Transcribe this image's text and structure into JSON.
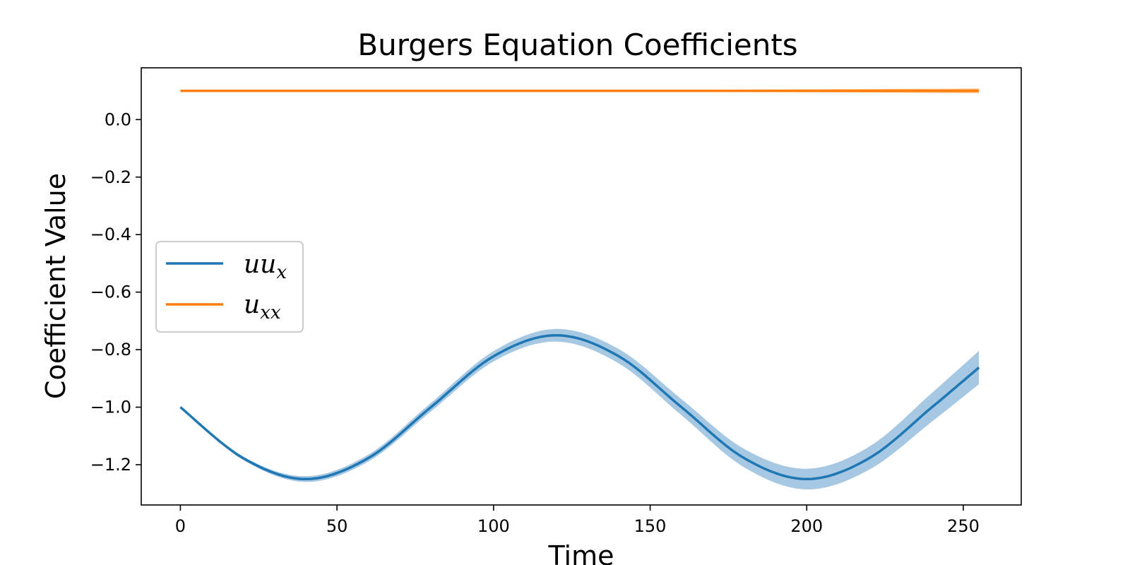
{
  "chart_data": {
    "type": "line",
    "title": "Burgers Equation Coefficients",
    "xlabel": "Time",
    "ylabel": "Coefficient Value",
    "xlim": [
      -12.5,
      268.5
    ],
    "ylim": [
      -1.34,
      0.18
    ],
    "xticks": [
      0,
      50,
      100,
      150,
      200,
      250
    ],
    "yticks": [
      0.0,
      -0.2,
      -0.4,
      -0.6,
      -0.8,
      -1.0,
      -1.2
    ],
    "ytick_labels": [
      "0.0",
      "−0.2",
      "−0.4",
      "−0.6",
      "−0.8",
      "−1.0",
      "−1.2"
    ],
    "grid": false,
    "legend": {
      "placement": "center-left",
      "entries": [
        {
          "base": "uu",
          "sub": "x"
        },
        {
          "base": "u",
          "sub": "xx"
        }
      ]
    },
    "series": [
      {
        "color": "#1f77b4",
        "band_color": "#a6c8e3",
        "x": [
          0,
          20,
          40,
          60,
          80,
          100,
          120,
          140,
          160,
          180,
          200,
          220,
          240,
          255
        ],
        "y": [
          -1.0,
          -1.177,
          -1.25,
          -1.177,
          -1.0,
          -0.823,
          -0.75,
          -0.823,
          -1.0,
          -1.177,
          -1.25,
          -1.177,
          -1.0,
          -0.862
        ],
        "band_halfwidth": [
          0.003,
          0.006,
          0.01,
          0.012,
          0.015,
          0.018,
          0.022,
          0.025,
          0.028,
          0.032,
          0.036,
          0.04,
          0.05,
          0.058
        ]
      },
      {
        "color": "#ff7f0e",
        "band_color": "#ffbf86",
        "x": [
          0,
          50,
          100,
          150,
          200,
          255
        ],
        "y": [
          0.1,
          0.1,
          0.1,
          0.1,
          0.1,
          0.1
        ],
        "band_halfwidth": [
          0.001,
          0.001,
          0.002,
          0.003,
          0.005,
          0.008
        ]
      }
    ]
  }
}
